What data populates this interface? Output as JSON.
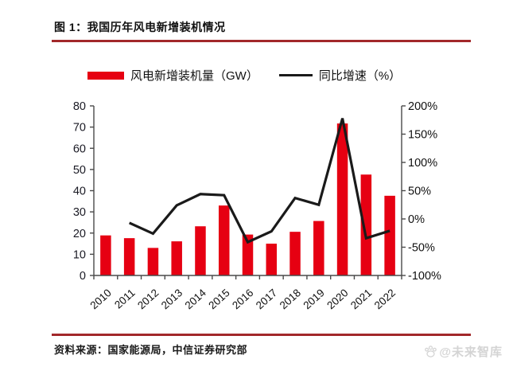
{
  "page": {
    "title": "图 1：我国历年风电新增装机情况",
    "source": "资料来源：国家能源局，中信证券研究部",
    "watermark": "@未来智库",
    "accent_color": "#a2282a",
    "text_color": "#111111"
  },
  "legend": {
    "bars_label": "风电新增装机量（GW）",
    "line_label": "同比增速（%）"
  },
  "chart_data": {
    "type": "bar",
    "title": "我国历年风电新增装机情况",
    "categories": [
      "2010",
      "2011",
      "2012",
      "2013",
      "2014",
      "2015",
      "2016",
      "2017",
      "2018",
      "2019",
      "2020",
      "2021",
      "2022"
    ],
    "series": [
      {
        "name": "风电新增装机量（GW）",
        "type": "bar",
        "axis": "left",
        "color": "#e60012",
        "values": [
          18.9,
          17.6,
          13.0,
          16.1,
          23.2,
          33.0,
          19.3,
          15.0,
          20.6,
          25.7,
          71.7,
          47.6,
          37.6
        ]
      },
      {
        "name": "同比增速（%）",
        "type": "line",
        "axis": "right",
        "color": "#1a1a1a",
        "values": [
          null,
          -7,
          -26,
          24,
          44,
          42,
          -41,
          -22,
          37,
          25,
          178,
          -34,
          -21
        ]
      }
    ],
    "left_axis": {
      "min": 0,
      "max": 80,
      "tick_values": [
        0,
        10,
        20,
        30,
        40,
        50,
        60,
        70,
        80
      ],
      "tick_labels": [
        "0",
        "10",
        "20",
        "30",
        "40",
        "50",
        "60",
        "70",
        "80"
      ]
    },
    "right_axis": {
      "min": -100,
      "max": 200,
      "tick_values": [
        -100,
        -50,
        0,
        50,
        100,
        150,
        200
      ],
      "tick_labels": [
        "-100%",
        "-50%",
        "0%",
        "50%",
        "100%",
        "150%",
        "200%"
      ]
    },
    "grid": false,
    "legend_position": "top",
    "axis_color": "#4a4a4a"
  }
}
